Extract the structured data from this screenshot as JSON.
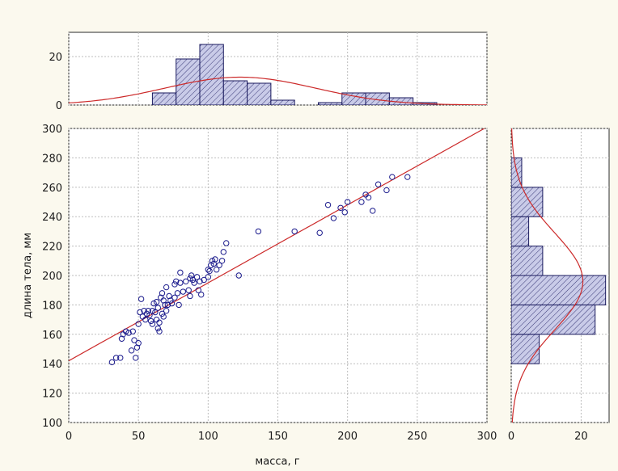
{
  "chart_data": {
    "type": "scatter",
    "xlabel": "масса, г",
    "ylabel": "длина тела, мм",
    "xlim": [
      0,
      300
    ],
    "ylim": [
      100,
      300
    ],
    "x_ticks": [
      "0",
      "50",
      "100",
      "150",
      "200",
      "250",
      "300"
    ],
    "y_ticks": [
      "100",
      "120",
      "140",
      "160",
      "180",
      "200",
      "220",
      "240",
      "260",
      "280",
      "300"
    ],
    "grid": true,
    "colors": {
      "points": "#1a1a8c",
      "fit_line": "#cc2a2a",
      "bars_fill": "#c9cbe8",
      "bars_edge": "#1a1a5e"
    },
    "scatter": {
      "points": [
        [
          31,
          141
        ],
        [
          34,
          144
        ],
        [
          37,
          144
        ],
        [
          38,
          157
        ],
        [
          39,
          160
        ],
        [
          41,
          162
        ],
        [
          43,
          161
        ],
        [
          45,
          149
        ],
        [
          46,
          162
        ],
        [
          47,
          156
        ],
        [
          48,
          144
        ],
        [
          49,
          151
        ],
        [
          50,
          154
        ],
        [
          50,
          167
        ],
        [
          51,
          175
        ],
        [
          52,
          184
        ],
        [
          53,
          172
        ],
        [
          54,
          176
        ],
        [
          55,
          170
        ],
        [
          56,
          174
        ],
        [
          57,
          176
        ],
        [
          58,
          173
        ],
        [
          59,
          169
        ],
        [
          60,
          167
        ],
        [
          60,
          176
        ],
        [
          61,
          181
        ],
        [
          62,
          175
        ],
        [
          63,
          170
        ],
        [
          63,
          182
        ],
        [
          64,
          164
        ],
        [
          64,
          178
        ],
        [
          65,
          162
        ],
        [
          65,
          168
        ],
        [
          66,
          185
        ],
        [
          67,
          174
        ],
        [
          67,
          188
        ],
        [
          68,
          183
        ],
        [
          68,
          172
        ],
        [
          69,
          180
        ],
        [
          70,
          192
        ],
        [
          70,
          176
        ],
        [
          71,
          180
        ],
        [
          72,
          186
        ],
        [
          73,
          183
        ],
        [
          74,
          181
        ],
        [
          76,
          185
        ],
        [
          76,
          194
        ],
        [
          77,
          196
        ],
        [
          78,
          188
        ],
        [
          79,
          180
        ],
        [
          80,
          195
        ],
        [
          80,
          202
        ],
        [
          82,
          189
        ],
        [
          84,
          196
        ],
        [
          86,
          190
        ],
        [
          87,
          186
        ],
        [
          87,
          198
        ],
        [
          88,
          200
        ],
        [
          89,
          197
        ],
        [
          90,
          195
        ],
        [
          92,
          199
        ],
        [
          93,
          190
        ],
        [
          94,
          196
        ],
        [
          95,
          187
        ],
        [
          97,
          197
        ],
        [
          100,
          199
        ],
        [
          100,
          204
        ],
        [
          101,
          203
        ],
        [
          102,
          207
        ],
        [
          103,
          210
        ],
        [
          104,
          208
        ],
        [
          105,
          211
        ],
        [
          106,
          204
        ],
        [
          108,
          207
        ],
        [
          110,
          210
        ],
        [
          111,
          216
        ],
        [
          113,
          222
        ],
        [
          122,
          200
        ],
        [
          136,
          230
        ],
        [
          162,
          230
        ],
        [
          180,
          229
        ],
        [
          186,
          248
        ],
        [
          190,
          239
        ],
        [
          195,
          246
        ],
        [
          198,
          243
        ],
        [
          200,
          250
        ],
        [
          210,
          250
        ],
        [
          213,
          255
        ],
        [
          215,
          253
        ],
        [
          218,
          244
        ],
        [
          222,
          262
        ],
        [
          228,
          258
        ],
        [
          232,
          267
        ],
        [
          243,
          267
        ]
      ]
    },
    "fit_line": {
      "x": [
        0,
        300
      ],
      "y": [
        142,
        301
      ]
    },
    "top_histogram": {
      "ylim": [
        0,
        30
      ],
      "y_ticks": [
        "0",
        "20"
      ],
      "bins": [
        {
          "from": 60,
          "to": 77,
          "count": 5
        },
        {
          "from": 77,
          "to": 94,
          "count": 19
        },
        {
          "from": 94,
          "to": 111,
          "count": 25
        },
        {
          "from": 111,
          "to": 128,
          "count": 10
        },
        {
          "from": 128,
          "to": 145,
          "count": 9
        },
        {
          "from": 145,
          "to": 162,
          "count": 2
        },
        {
          "from": 162,
          "to": 179,
          "count": 0
        },
        {
          "from": 179,
          "to": 196,
          "count": 1
        },
        {
          "from": 196,
          "to": 213,
          "count": 5
        },
        {
          "from": 213,
          "to": 230,
          "count": 5
        },
        {
          "from": 230,
          "to": 247,
          "count": 3
        },
        {
          "from": 247,
          "to": 264,
          "count": 1
        }
      ],
      "normal_curve": {
        "mean": 123,
        "sd": 54,
        "peak": 11.5
      }
    },
    "right_histogram": {
      "xlim": [
        0,
        28
      ],
      "x_ticks": [
        "0",
        "20"
      ],
      "bins": [
        {
          "from": 140,
          "to": 160,
          "count": 8
        },
        {
          "from": 160,
          "to": 180,
          "count": 24
        },
        {
          "from": 180,
          "to": 200,
          "count": 27
        },
        {
          "from": 200,
          "to": 220,
          "count": 9
        },
        {
          "from": 220,
          "to": 240,
          "count": 5
        },
        {
          "from": 240,
          "to": 260,
          "count": 9
        },
        {
          "from": 260,
          "to": 280,
          "count": 3
        }
      ],
      "normal_curve": {
        "mean": 196,
        "sd": 33,
        "peak": 20.5
      }
    }
  }
}
